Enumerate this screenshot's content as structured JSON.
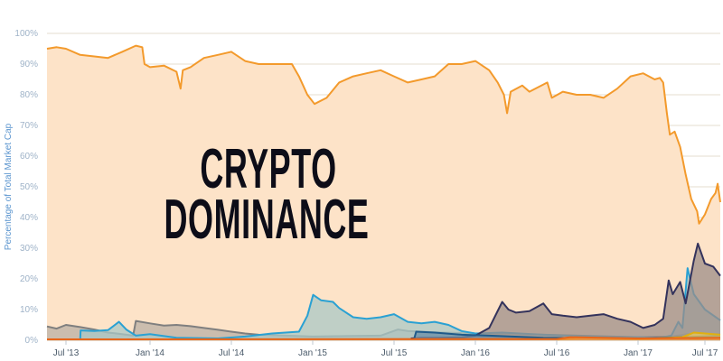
{
  "overlay_title": {
    "line1": "CRYPTO",
    "line2": "DOMINANCE"
  },
  "chart_data": {
    "type": "area",
    "title": "",
    "xlabel": "",
    "ylabel": "Percentage of Total Market Cap",
    "ylim": [
      0,
      100
    ],
    "y_ticks": [
      "0%",
      "10%",
      "20%",
      "30%",
      "40%",
      "50%",
      "60%",
      "70%",
      "80%",
      "90%",
      "100%"
    ],
    "x_ticks": [
      {
        "label": "Jul '13",
        "date": "2013-07-01"
      },
      {
        "label": "Jan '14",
        "date": "2014-01-01"
      },
      {
        "label": "Jul '14",
        "date": "2014-07-01"
      },
      {
        "label": "Jan '15",
        "date": "2015-01-01"
      },
      {
        "label": "Jul '15",
        "date": "2015-07-01"
      },
      {
        "label": "Jan '16",
        "date": "2016-01-01"
      },
      {
        "label": "Jul '16",
        "date": "2016-07-01"
      },
      {
        "label": "Jan '17",
        "date": "2017-01-01"
      },
      {
        "label": "Jul '17",
        "date": "2017-07-01"
      }
    ],
    "xlim": [
      "2013-05-01",
      "2017-08-05"
    ],
    "grid": true,
    "legend": "none",
    "series": [
      {
        "color": "#f39a2c",
        "fill": "#fde3c8",
        "points": [
          [
            "2013-05-01",
            95
          ],
          [
            "2013-06-01",
            95.5
          ],
          [
            "2013-07-01",
            95
          ],
          [
            "2013-08-01",
            93
          ],
          [
            "2013-09-01",
            92.5
          ],
          [
            "2013-10-01",
            92
          ],
          [
            "2013-11-01",
            94
          ],
          [
            "2013-12-01",
            96
          ],
          [
            "2013-12-15",
            95.5
          ],
          [
            "2013-12-20",
            90
          ],
          [
            "2014-01-01",
            89
          ],
          [
            "2014-02-01",
            89.5
          ],
          [
            "2014-03-01",
            87.5
          ],
          [
            "2014-03-10",
            82
          ],
          [
            "2014-03-15",
            88
          ],
          [
            "2014-04-01",
            89
          ],
          [
            "2014-05-01",
            92
          ],
          [
            "2014-06-01",
            93
          ],
          [
            "2014-07-01",
            94
          ],
          [
            "2014-08-01",
            91
          ],
          [
            "2014-09-01",
            90
          ],
          [
            "2014-10-01",
            90
          ],
          [
            "2014-11-15",
            90
          ],
          [
            "2014-12-01",
            86
          ],
          [
            "2014-12-20",
            80
          ],
          [
            "2015-01-05",
            77
          ],
          [
            "2015-02-01",
            79
          ],
          [
            "2015-03-01",
            84
          ],
          [
            "2015-04-01",
            86
          ],
          [
            "2015-05-01",
            87
          ],
          [
            "2015-06-01",
            88
          ],
          [
            "2015-07-01",
            86
          ],
          [
            "2015-08-01",
            84
          ],
          [
            "2015-09-01",
            85
          ],
          [
            "2015-10-01",
            86
          ],
          [
            "2015-11-01",
            90
          ],
          [
            "2015-12-01",
            90
          ],
          [
            "2016-01-01",
            91
          ],
          [
            "2016-02-01",
            88
          ],
          [
            "2016-02-20",
            84
          ],
          [
            "2016-03-05",
            80
          ],
          [
            "2016-03-12",
            74
          ],
          [
            "2016-03-20",
            81
          ],
          [
            "2016-04-15",
            83
          ],
          [
            "2016-05-01",
            81
          ],
          [
            "2016-06-10",
            84
          ],
          [
            "2016-06-20",
            79
          ],
          [
            "2016-07-15",
            81
          ],
          [
            "2016-08-15",
            80
          ],
          [
            "2016-09-15",
            80
          ],
          [
            "2016-10-15",
            79
          ],
          [
            "2016-11-15",
            82
          ],
          [
            "2016-12-15",
            86
          ],
          [
            "2017-01-15",
            87
          ],
          [
            "2017-02-15",
            85
          ],
          [
            "2017-03-01",
            85.5
          ],
          [
            "2017-03-10",
            84
          ],
          [
            "2017-03-20",
            74
          ],
          [
            "2017-03-28",
            67
          ],
          [
            "2017-04-10",
            68
          ],
          [
            "2017-04-25",
            63
          ],
          [
            "2017-05-10",
            54
          ],
          [
            "2017-05-25",
            46
          ],
          [
            "2017-06-10",
            42
          ],
          [
            "2017-06-15",
            38
          ],
          [
            "2017-07-01",
            41
          ],
          [
            "2017-07-15",
            46
          ],
          [
            "2017-07-25",
            48
          ],
          [
            "2017-07-30",
            51
          ],
          [
            "2017-08-05",
            45
          ]
        ]
      },
      {
        "color": "#7f7f7f",
        "fill": "#b9b0a5",
        "points": [
          [
            "2013-05-01",
            4.5
          ],
          [
            "2013-06-01",
            3.8
          ],
          [
            "2013-07-01",
            5.0
          ],
          [
            "2013-08-01",
            4.3
          ],
          [
            "2013-09-01",
            3.5
          ],
          [
            "2013-10-01",
            2.5
          ],
          [
            "2013-11-01",
            2.0
          ],
          [
            "2013-11-25",
            1.5
          ],
          [
            "2013-12-01",
            6.3
          ],
          [
            "2014-01-01",
            5.5
          ],
          [
            "2014-02-01",
            4.8
          ],
          [
            "2014-03-01",
            5.0
          ],
          [
            "2014-04-01",
            4.6
          ],
          [
            "2014-05-01",
            4.0
          ],
          [
            "2014-06-01",
            3.4
          ],
          [
            "2014-07-01",
            2.8
          ],
          [
            "2014-08-01",
            2.2
          ],
          [
            "2014-09-01",
            1.8
          ],
          [
            "2014-11-01",
            1.5
          ],
          [
            "2015-01-01",
            1.2
          ],
          [
            "2015-06-01",
            1.5
          ],
          [
            "2015-07-10",
            3.5
          ],
          [
            "2015-08-01",
            3.0
          ],
          [
            "2015-10-01",
            2.6
          ],
          [
            "2016-01-01",
            2.2
          ],
          [
            "2016-06-01",
            1.8
          ],
          [
            "2017-01-01",
            1.0
          ],
          [
            "2017-04-01",
            1.2
          ],
          [
            "2017-05-15",
            2.0
          ],
          [
            "2017-08-05",
            2.0
          ]
        ]
      },
      {
        "color": "#2aa1d3",
        "fill": "#a9c8c6",
        "points": [
          [
            "2013-08-01",
            0
          ],
          [
            "2013-08-02",
            3.2
          ],
          [
            "2013-09-01",
            3.0
          ],
          [
            "2013-10-01",
            3.3
          ],
          [
            "2013-10-25",
            6.0
          ],
          [
            "2013-11-10",
            3.5
          ],
          [
            "2013-12-01",
            1.5
          ],
          [
            "2014-01-01",
            2.0
          ],
          [
            "2014-03-01",
            0.8
          ],
          [
            "2014-06-01",
            0.6
          ],
          [
            "2014-08-01",
            1.2
          ],
          [
            "2014-10-01",
            2.2
          ],
          [
            "2014-12-01",
            2.8
          ],
          [
            "2014-12-20",
            8.0
          ],
          [
            "2015-01-02",
            14.8
          ],
          [
            "2015-01-20",
            13
          ],
          [
            "2015-02-15",
            12.5
          ],
          [
            "2015-03-01",
            10.5
          ],
          [
            "2015-04-01",
            7.5
          ],
          [
            "2015-05-01",
            7.0
          ],
          [
            "2015-06-01",
            7.5
          ],
          [
            "2015-07-01",
            8.5
          ],
          [
            "2015-08-01",
            6.0
          ],
          [
            "2015-09-01",
            5.5
          ],
          [
            "2015-10-01",
            6.0
          ],
          [
            "2015-11-01",
            5.0
          ],
          [
            "2015-12-01",
            3.0
          ],
          [
            "2016-01-01",
            2.2
          ],
          [
            "2016-03-01",
            2.5
          ],
          [
            "2016-06-01",
            1.8
          ],
          [
            "2016-09-01",
            1.3
          ],
          [
            "2017-01-01",
            1.0
          ],
          [
            "2017-03-01",
            0.8
          ],
          [
            "2017-04-01",
            1.5
          ],
          [
            "2017-04-20",
            6.0
          ],
          [
            "2017-05-01",
            4.0
          ],
          [
            "2017-05-15",
            23.5
          ],
          [
            "2017-06-01",
            15
          ],
          [
            "2017-07-01",
            10
          ],
          [
            "2017-08-05",
            6.5
          ]
        ]
      },
      {
        "color": "#34335c",
        "fill": "#9c8d88",
        "points": [
          [
            "2015-08-08",
            0.6
          ],
          [
            "2015-09-01",
            0.8
          ],
          [
            "2015-10-01",
            0.8
          ],
          [
            "2015-12-01",
            0.9
          ],
          [
            "2016-01-01",
            1.5
          ],
          [
            "2016-02-01",
            4.0
          ],
          [
            "2016-03-01",
            12.5
          ],
          [
            "2016-03-15",
            10
          ],
          [
            "2016-04-01",
            9
          ],
          [
            "2016-05-01",
            9.5
          ],
          [
            "2016-06-01",
            12
          ],
          [
            "2016-06-20",
            8.5
          ],
          [
            "2016-07-15",
            8
          ],
          [
            "2016-08-15",
            7.5
          ],
          [
            "2016-09-15",
            8
          ],
          [
            "2016-10-15",
            8.5
          ],
          [
            "2016-11-15",
            7
          ],
          [
            "2016-12-15",
            6
          ],
          [
            "2017-01-15",
            4
          ],
          [
            "2017-02-15",
            5
          ],
          [
            "2017-03-10",
            7
          ],
          [
            "2017-03-25",
            19.5
          ],
          [
            "2017-04-05",
            15
          ],
          [
            "2017-04-25",
            19
          ],
          [
            "2017-05-10",
            12
          ],
          [
            "2017-06-01",
            26
          ],
          [
            "2017-06-12",
            31.5
          ],
          [
            "2017-07-01",
            25
          ],
          [
            "2017-07-20",
            24
          ],
          [
            "2017-08-05",
            21
          ]
        ]
      },
      {
        "color": "#1f5a8a",
        "fill": "#6b8fa8",
        "points": [
          [
            "2015-08-15",
            0.2
          ],
          [
            "2015-08-20",
            2.8
          ],
          [
            "2015-10-01",
            2.5
          ],
          [
            "2015-12-01",
            1.8
          ],
          [
            "2016-02-01",
            1.5
          ],
          [
            "2016-06-01",
            0.8
          ],
          [
            "2017-01-01",
            0.5
          ],
          [
            "2017-05-01",
            1.0
          ],
          [
            "2017-08-05",
            1.5
          ]
        ]
      },
      {
        "color": "#e0b010",
        "fill": "#e8c860",
        "points": [
          [
            "2016-07-01",
            0.2
          ],
          [
            "2016-09-01",
            0.8
          ],
          [
            "2017-01-01",
            0.3
          ],
          [
            "2017-05-01",
            1.0
          ],
          [
            "2017-06-01",
            2.5
          ],
          [
            "2017-08-05",
            1.8
          ]
        ]
      },
      {
        "color": "#e8661a",
        "fill": "#f08a40",
        "points": [
          [
            "2013-05-01",
            0.3
          ],
          [
            "2016-07-01",
            0.4
          ],
          [
            "2016-08-01",
            1.0
          ],
          [
            "2017-01-01",
            0.6
          ],
          [
            "2017-08-05",
            0.8
          ]
        ]
      }
    ]
  }
}
